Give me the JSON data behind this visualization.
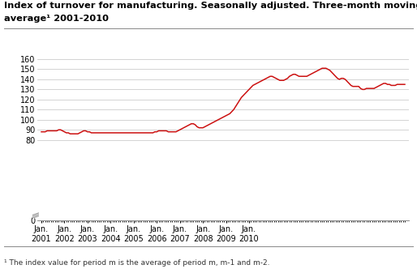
{
  "title_line1": "Index of turnover for manufacturing. Seasonally adjusted. Three-month moving",
  "title_line2": "average¹ 2001-2010",
  "footnote": "¹ The index value for period m is the average of period m, m-1 and m-2.",
  "line_color": "#cc1111",
  "background_color": "#ffffff",
  "grid_color": "#cccccc",
  "ylim": [
    0,
    160
  ],
  "yticks": [
    0,
    80,
    90,
    100,
    110,
    120,
    130,
    140,
    150,
    160
  ],
  "xtick_labels": [
    "Jan.\n2001",
    "Jan.\n2002",
    "Jan.\n2003",
    "Jan.\n2004",
    "Jan.\n2005",
    "Jan.\n2006",
    "Jan.\n2007",
    "Jan.\n2008",
    "Jan.\n2009",
    "Jan.\n2010"
  ],
  "values": [
    88,
    88,
    88,
    89,
    89,
    89,
    89,
    89,
    89,
    90,
    90,
    89,
    88,
    87,
    87,
    86,
    86,
    86,
    86,
    86,
    87,
    88,
    89,
    89,
    88,
    88,
    87,
    87,
    87,
    87,
    87,
    87,
    87,
    87,
    87,
    87,
    87,
    87,
    87,
    87,
    87,
    87,
    87,
    87,
    87,
    87,
    87,
    87,
    87,
    87,
    87,
    87,
    87,
    87,
    87,
    87,
    87,
    87,
    87,
    88,
    88,
    89,
    89,
    89,
    89,
    89,
    88,
    88,
    88,
    88,
    88,
    89,
    90,
    91,
    92,
    93,
    94,
    95,
    96,
    96,
    95,
    93,
    92,
    92,
    92,
    93,
    94,
    95,
    96,
    97,
    98,
    99,
    100,
    101,
    102,
    103,
    104,
    105,
    106,
    108,
    110,
    113,
    116,
    119,
    122,
    124,
    126,
    128,
    130,
    132,
    134,
    135,
    136,
    137,
    138,
    139,
    140,
    141,
    142,
    143,
    143,
    142,
    141,
    140,
    139,
    139,
    139,
    140,
    141,
    143,
    144,
    145,
    145,
    144,
    143,
    143,
    143,
    143,
    143,
    144,
    145,
    146,
    147,
    148,
    149,
    150,
    151,
    151,
    151,
    150,
    149,
    147,
    145,
    143,
    141,
    140,
    141,
    141,
    140,
    138,
    136,
    134,
    133,
    133,
    133,
    133,
    131,
    130,
    130,
    131,
    131,
    131,
    131,
    131,
    132,
    133,
    134,
    135,
    136,
    136,
    135,
    135,
    134,
    134,
    134,
    135,
    135,
    135,
    135,
    135
  ]
}
